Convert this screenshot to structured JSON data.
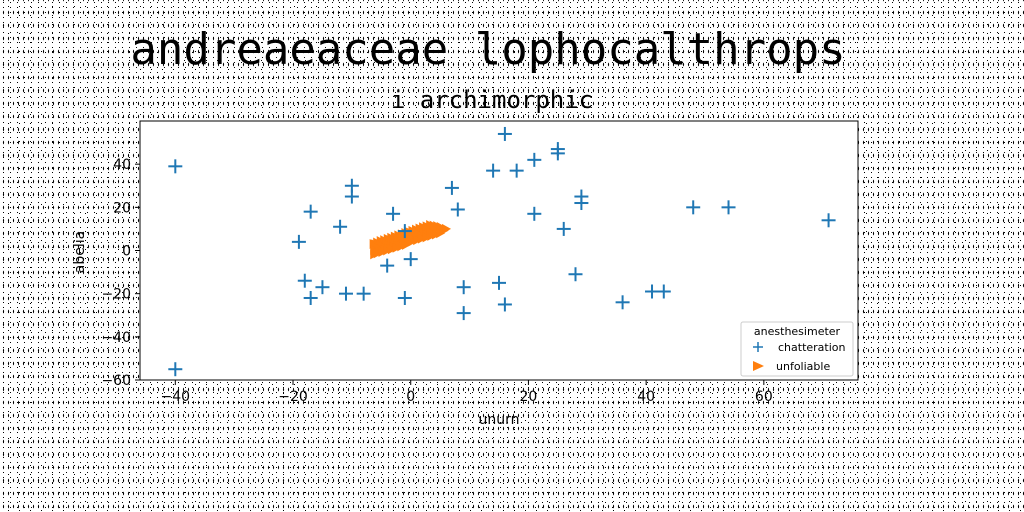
{
  "figure": {
    "suptitle": "andreaeaceae lophocalthrops"
  },
  "chart_data": {
    "type": "scatter",
    "title": "i archimorphic",
    "xlabel": "unurn",
    "ylabel": "abelia",
    "xlim": [
      -46,
      76
    ],
    "ylim": [
      -60,
      60
    ],
    "xticks": [
      -40,
      -20,
      0,
      20,
      40,
      60
    ],
    "yticks": [
      -60,
      -40,
      -20,
      0,
      20,
      40
    ],
    "grid": false,
    "legend": {
      "title": "anesthesimeter",
      "placement": "lower-right"
    },
    "series": [
      {
        "name": "chatteration",
        "marker": "plus",
        "color": "#1f77b4",
        "points": [
          [
            -40,
            39
          ],
          [
            -40,
            -55
          ],
          [
            -19,
            4
          ],
          [
            -18,
            -14
          ],
          [
            -17,
            18
          ],
          [
            -17,
            -22
          ],
          [
            -15,
            -17
          ],
          [
            -12,
            11
          ],
          [
            -11,
            -20
          ],
          [
            -10,
            30
          ],
          [
            -10,
            25
          ],
          [
            -8,
            -20
          ],
          [
            -4,
            -7
          ],
          [
            -3,
            17
          ],
          [
            -1,
            9
          ],
          [
            -1,
            -22
          ],
          [
            0,
            -4
          ],
          [
            7,
            29
          ],
          [
            8,
            19
          ],
          [
            9,
            -17
          ],
          [
            9,
            -29
          ],
          [
            14,
            37
          ],
          [
            15,
            -15
          ],
          [
            16,
            54
          ],
          [
            16,
            -25
          ],
          [
            18,
            37
          ],
          [
            21,
            17
          ],
          [
            21,
            42
          ],
          [
            25,
            47
          ],
          [
            25,
            45
          ],
          [
            26,
            10
          ],
          [
            28,
            -11
          ],
          [
            29,
            22
          ],
          [
            29,
            25
          ],
          [
            36,
            -24
          ],
          [
            41,
            -19
          ],
          [
            43,
            -19
          ],
          [
            48,
            20
          ],
          [
            54,
            20
          ],
          [
            71,
            14
          ]
        ]
      },
      {
        "name": "unfoliable",
        "marker": "triangle-right",
        "color": "#ff7f0e",
        "points": [
          [
            -6.3,
            3.0
          ],
          [
            -6.0,
            2.9
          ],
          [
            -5.7,
            3.7
          ],
          [
            -5.4,
            3.2
          ],
          [
            -5.1,
            4.4
          ],
          [
            -4.8,
            3.9
          ],
          [
            -4.5,
            4.8
          ],
          [
            -4.2,
            4.3
          ],
          [
            -3.9,
            5.4
          ],
          [
            -3.6,
            5.0
          ],
          [
            -3.3,
            5.9
          ],
          [
            -3.0,
            5.4
          ],
          [
            -2.7,
            6.4
          ],
          [
            -2.4,
            6.0
          ],
          [
            -2.1,
            7.0
          ],
          [
            -1.8,
            6.4
          ],
          [
            -1.5,
            7.5
          ],
          [
            -1.2,
            7.1
          ],
          [
            -0.9,
            8.1
          ],
          [
            -0.6,
            7.5
          ],
          [
            -0.3,
            8.6
          ],
          [
            0.0,
            8.2
          ],
          [
            0.3,
            9.1
          ],
          [
            0.6,
            8.7
          ],
          [
            0.9,
            9.7
          ],
          [
            1.2,
            9.2
          ],
          [
            1.5,
            10.2
          ],
          [
            1.8,
            9.8
          ],
          [
            2.1,
            10.8
          ],
          [
            2.4,
            10.3
          ],
          [
            2.7,
            11.2
          ],
          [
            3.0,
            10.8
          ],
          [
            3.3,
            11.8
          ],
          [
            3.6,
            11.0
          ],
          [
            3.9,
            11.5
          ],
          [
            4.2,
            10.9
          ],
          [
            4.5,
            11.3
          ],
          [
            4.8,
            10.6
          ],
          [
            5.1,
            10.9
          ],
          [
            5.4,
            10.2
          ],
          [
            -5.9,
            1.6
          ],
          [
            -5.0,
            2.3
          ],
          [
            -4.1,
            3.1
          ],
          [
            -3.2,
            3.8
          ],
          [
            -2.3,
            4.6
          ],
          [
            -1.4,
            5.3
          ],
          [
            -0.5,
            6.1
          ],
          [
            0.4,
            6.8
          ],
          [
            1.3,
            7.6
          ],
          [
            2.2,
            8.3
          ],
          [
            3.1,
            9.1
          ],
          [
            4.0,
            9.6
          ],
          [
            -6.2,
            0.3
          ],
          [
            -5.4,
            0.9
          ],
          [
            -4.6,
            1.6
          ],
          [
            -3.8,
            2.2
          ],
          [
            -3.0,
            2.9
          ],
          [
            -2.2,
            3.5
          ],
          [
            -1.4,
            4.2
          ],
          [
            -0.6,
            4.8
          ],
          [
            0.2,
            5.5
          ],
          [
            1.0,
            6.1
          ],
          [
            1.8,
            6.8
          ],
          [
            2.6,
            7.4
          ],
          [
            3.4,
            8.1
          ],
          [
            -6.1,
            -1.0
          ],
          [
            -5.3,
            -0.4
          ],
          [
            -4.5,
            0.3
          ],
          [
            -3.7,
            0.9
          ],
          [
            -2.9,
            1.6
          ],
          [
            -2.1,
            2.2
          ],
          [
            -1.3,
            2.9
          ],
          [
            -0.5,
            3.5
          ],
          [
            0.3,
            4.2
          ],
          [
            1.1,
            4.8
          ],
          [
            1.9,
            5.5
          ],
          [
            2.7,
            6.1
          ],
          [
            3.5,
            6.8
          ],
          [
            4.3,
            7.4
          ],
          [
            5.0,
            8.0
          ],
          [
            5.6,
            9.2
          ],
          [
            6.0,
            10.0
          ],
          [
            -6.2,
            -1.8
          ],
          [
            -5.6,
            -1.3
          ],
          [
            -4.8,
            -0.7
          ],
          [
            -4.0,
            0.0
          ],
          [
            -3.2,
            0.6
          ],
          [
            -2.4,
            1.3
          ],
          [
            -1.6,
            1.9
          ],
          [
            -0.8,
            2.6
          ]
        ]
      }
    ]
  }
}
